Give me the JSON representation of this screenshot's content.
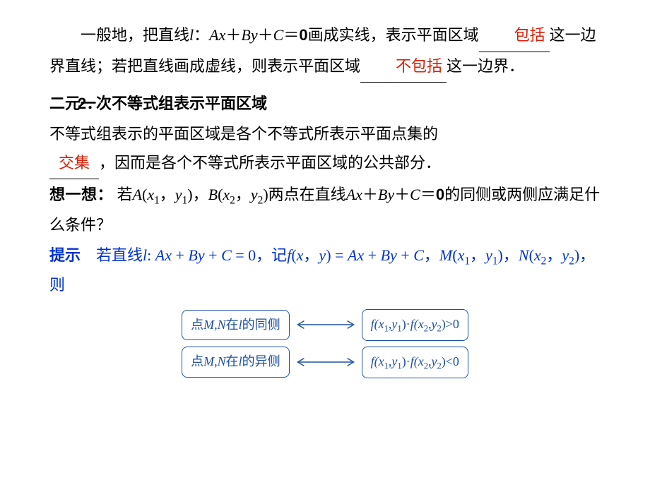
{
  "para1": {
    "t1": "一般地，把直线",
    "l": "l",
    "t2": "：",
    "eq1_A": "A",
    "eq1_x": "x",
    "eq1_p1": "＋",
    "eq1_B": "B",
    "eq1_y": "y",
    "eq1_p2": "＋",
    "eq1_C": "C",
    "eq1_eq": "＝",
    "eq1_0": "0",
    "t3": "画成实线，表示平面区域",
    "blank1": "包括",
    "t4": "这一边界直线；若把直线画成虚线，则表示平面区域",
    "blank2": "不包括",
    "t5": "这一边界．"
  },
  "sec2": {
    "num": "2．",
    "heading": "二元一次不等式组表示平面区域"
  },
  "para3": {
    "t1": "不等式组表示的平面区域是各个不等式所表示平面点集的",
    "blank": "交集",
    "t2": "，因而是各个不等式所表示平面区域的公共部分．"
  },
  "para4": {
    "lead": "想一想：",
    "t1": "若",
    "A": "A",
    "lp1": "(",
    "x1": "x",
    "s1": "1",
    "c1": "，",
    "y1": "y",
    "s1b": "1",
    "rp1": ")",
    "c2": "，",
    "B": "B",
    "lp2": "(",
    "x2": "x",
    "s2": "2",
    "c3": "，",
    "y2": "y",
    "s2b": "2",
    "rp2": ")",
    "t2": "两点在直线",
    "eA": "A",
    "ex": "x",
    "ep1": "＋",
    "eB": "B",
    "ey": "y",
    "ep2": "＋",
    "eC": "C",
    "eeq": "＝",
    "e0": "0",
    "t3": "的同侧或两侧应满足什么条件？"
  },
  "hint": {
    "lead": "提示　",
    "t1": "若直线",
    "l": "l",
    "colon": ":",
    "sp": " ",
    "A1": "A",
    "x1": "x",
    "p1": " + ",
    "B1": "B",
    "y1": "y",
    "p2": " + ",
    "C1": "C",
    "eq1": " = 0",
    "t2": "，记",
    "f": "f",
    "lp": "(",
    "fx": "x",
    "fc": "，",
    "fy": "y",
    "rp": ")",
    "feq": " = ",
    "A2": "A",
    "x2": "x",
    "p3": " + ",
    "B2": "B",
    "y2": "y",
    "p4": " + ",
    "C2": "C",
    "t3": "，",
    "M": "M",
    "mlp": "(",
    "mx": "x",
    "ms1": "1",
    "mc": "，",
    "my": "y",
    "ms1b": "1",
    "mrp": ")",
    "t4": "，",
    "N": "N",
    "nlp": "(",
    "nx": "x",
    "ns2": "2",
    "nc": "，",
    "ny": "y",
    "ns2b": "2",
    "nrp": ")",
    "t5": "，则"
  },
  "diagram": {
    "arrow_color": "#1e50a2",
    "rows": [
      {
        "left": {
          "pre": "点",
          "M": "M",
          "c": ",",
          "N": "N",
          "post": "在",
          "l": "l",
          "tail": "的同侧"
        },
        "right": {
          "f": "f(",
          "x1": "x",
          "s1": "1",
          "c1": ",",
          "y1": "y",
          "s1b": "1",
          "rp1": ")·",
          "f2": "f(",
          "x2": "x",
          "s2": "2",
          "c2": ",",
          "y2": "y",
          "s2b": "2",
          "rp2": ")>0"
        }
      },
      {
        "left": {
          "pre": "点",
          "M": "M",
          "c": ",",
          "N": "N",
          "post": "在",
          "l": "l",
          "tail": "的异侧"
        },
        "right": {
          "f": "f(",
          "x1": "x",
          "s1": "1",
          "c1": ",",
          "y1": "y",
          "s1b": "1",
          "rp1": ")·",
          "f2": "f(",
          "x2": "x",
          "s2": "2",
          "c2": ",",
          "y2": "y",
          "s2b": "2",
          "rp2": ")<0"
        }
      }
    ]
  },
  "style": {
    "red": "#d81e06",
    "blue": "#0033cc",
    "box_border": "#1e50a2",
    "body_font_size": 22
  }
}
